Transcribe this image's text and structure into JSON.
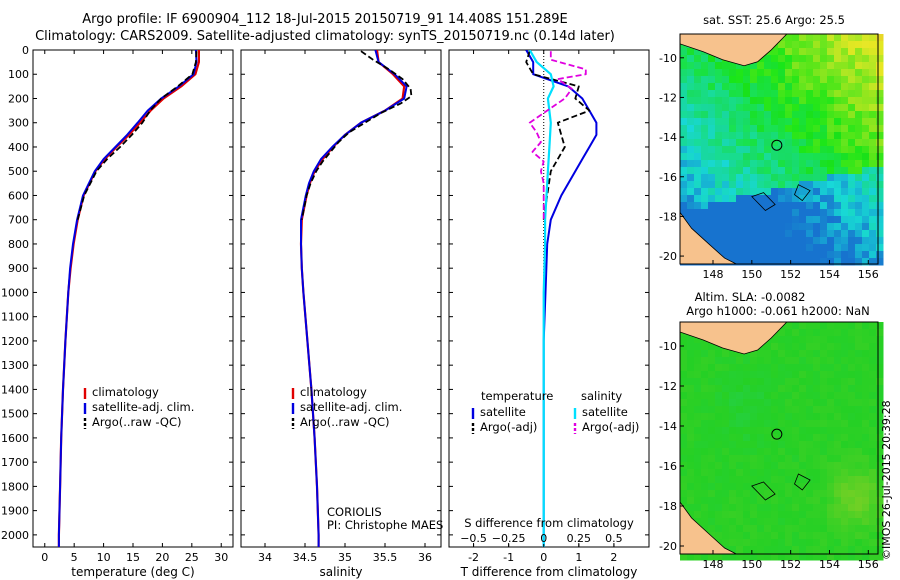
{
  "titles": {
    "line1": "Argo profile: IF 6900904_112 18-Jul-2015 20150719_91 14.408S 151.289E",
    "line2": "Climatology: CARS2009. Satellite-adjusted climatology: synTS_20150719.nc (0.14d later)"
  },
  "colors": {
    "clim": "#e00000",
    "sat": "#0000e0",
    "argo": "#000000",
    "cyan": "#00e0ff",
    "magenta": "#e000e0",
    "land": "#f7c28d"
  },
  "chart_data": [
    {
      "type": "line",
      "panel": "temperature",
      "xlabel": "temperature (deg C)",
      "xlim": [
        -2,
        32
      ],
      "ylim": [
        2050,
        0
      ],
      "xticks": [
        0,
        5,
        10,
        15,
        20,
        25,
        30
      ],
      "yticks": [
        0,
        100,
        200,
        300,
        400,
        500,
        600,
        700,
        800,
        900,
        1000,
        1100,
        1200,
        1300,
        1400,
        1500,
        1600,
        1700,
        1800,
        1900,
        2000
      ],
      "legend": [
        "climatology",
        "satellite-adj. clim.",
        "Argo(..raw -QC)"
      ],
      "series": [
        {
          "name": "climatology",
          "depth": [
            0,
            50,
            100,
            150,
            200,
            250,
            300,
            350,
            400,
            450,
            500,
            600,
            700,
            800,
            900,
            1000,
            1200,
            1400,
            1600,
            1800,
            2000,
            2050
          ],
          "values": [
            26.2,
            26.2,
            25.6,
            23.2,
            20.2,
            18.0,
            16.2,
            14.3,
            12.2,
            10.2,
            8.6,
            6.6,
            5.6,
            4.9,
            4.4,
            4.0,
            3.5,
            3.1,
            2.8,
            2.6,
            2.4,
            2.4
          ]
        },
        {
          "name": "satellite-adj. clim.",
          "depth": [
            0,
            50,
            100,
            150,
            200,
            250,
            300,
            350,
            400,
            450,
            500,
            600,
            700,
            800,
            900,
            1000,
            1200,
            1400,
            1600,
            1800,
            2000,
            2050
          ],
          "values": [
            25.7,
            25.8,
            25.3,
            22.8,
            19.8,
            17.5,
            15.8,
            14.0,
            12.0,
            10.0,
            8.5,
            6.5,
            5.5,
            4.8,
            4.3,
            4.0,
            3.5,
            3.1,
            2.8,
            2.6,
            2.4,
            2.4
          ]
        },
        {
          "name": "Argo(..raw -QC)",
          "depth": [
            5,
            50,
            100,
            150,
            200,
            250,
            300,
            350,
            400,
            450,
            500,
            600,
            700
          ],
          "values": [
            25.8,
            25.7,
            25.1,
            22.6,
            19.8,
            17.9,
            16.6,
            14.8,
            12.8,
            10.6,
            8.8,
            6.7,
            5.6
          ]
        }
      ]
    },
    {
      "type": "line",
      "panel": "salinity",
      "xlabel": "salinity",
      "xlim": [
        33.7,
        36.2
      ],
      "ylim": [
        2050,
        0
      ],
      "xticks": [
        34,
        34.5,
        35,
        35.5,
        36
      ],
      "legend": [
        "climatology",
        "satellite-adj. clim.",
        "Argo(..raw -QC)"
      ],
      "annotation": [
        "CORIOLIS",
        "PI: Christophe MAES"
      ],
      "series": [
        {
          "name": "climatology",
          "depth": [
            0,
            50,
            100,
            150,
            200,
            250,
            300,
            350,
            400,
            450,
            500,
            550,
            600,
            700,
            800,
            900,
            1000,
            1200,
            1400,
            1600,
            1800,
            2000,
            2050
          ],
          "values": [
            35.4,
            35.42,
            35.6,
            35.74,
            35.72,
            35.5,
            35.2,
            35.0,
            34.85,
            34.72,
            34.62,
            34.56,
            34.52,
            34.46,
            34.45,
            34.46,
            34.48,
            34.53,
            34.58,
            34.62,
            34.65,
            34.67,
            34.67
          ]
        },
        {
          "name": "satellite-adj. clim.",
          "depth": [
            0,
            50,
            100,
            150,
            200,
            250,
            300,
            350,
            400,
            450,
            500,
            550,
            600,
            700,
            800,
            900,
            1000,
            1200,
            1400,
            1600,
            1800,
            2000,
            2050
          ],
          "values": [
            35.38,
            35.42,
            35.62,
            35.77,
            35.74,
            35.5,
            35.2,
            35.0,
            34.84,
            34.7,
            34.61,
            34.55,
            34.51,
            34.45,
            34.45,
            34.46,
            34.48,
            34.53,
            34.58,
            34.62,
            34.65,
            34.67,
            34.67
          ]
        },
        {
          "name": "Argo(..raw -QC)",
          "depth": [
            5,
            40,
            80,
            120,
            160,
            190,
            220,
            260,
            300,
            340,
            380,
            420,
            460,
            500,
            550,
            600,
            700
          ],
          "values": [
            35.2,
            35.35,
            35.55,
            35.72,
            35.82,
            35.83,
            35.7,
            35.45,
            35.25,
            35.05,
            34.92,
            34.82,
            34.72,
            34.64,
            34.57,
            34.52,
            34.46
          ]
        }
      ]
    },
    {
      "type": "line",
      "panel": "difference",
      "xlabel": "T difference from climatology",
      "xlabel2": "S difference from climatology",
      "xlim": [
        -2.7,
        3.0
      ],
      "ylim": [
        2050,
        0
      ],
      "xticks": [
        -2,
        -1,
        0,
        1,
        2
      ],
      "xticks_s": [
        -0.5,
        -0.25,
        0,
        0.25,
        0.5
      ],
      "xticks_s_labels": [
        "−0.5",
        "−0.25",
        "0",
        "0.25",
        "0.5"
      ],
      "legend_headers": [
        "temperature",
        "salinity"
      ],
      "legend": [
        "satellite",
        "Argo(-adj)",
        "satellite",
        "Argo(-adj)"
      ],
      "series": [
        {
          "name": "temperature satellite",
          "depth": [
            0,
            50,
            100,
            150,
            200,
            250,
            300,
            350,
            400,
            450,
            500,
            600,
            700,
            800,
            1000,
            1200,
            1600,
            2050
          ],
          "values": [
            -0.5,
            -0.3,
            -0.3,
            0.7,
            1.1,
            1.3,
            1.5,
            1.5,
            1.3,
            1.1,
            0.9,
            0.5,
            0.2,
            0.1,
            0.05,
            0.0,
            0.0,
            0.0
          ]
        },
        {
          "name": "temperature Argo(-adj)",
          "depth": [
            5,
            50,
            100,
            150,
            200,
            250,
            300,
            350,
            400,
            450,
            500,
            600,
            700
          ],
          "values": [
            -0.4,
            -0.5,
            -0.3,
            1.0,
            0.9,
            1.3,
            0.4,
            0.5,
            0.6,
            0.4,
            0.2,
            0.1,
            0.0
          ]
        },
        {
          "name": "salinity satellite",
          "depth": [
            0,
            50,
            100,
            150,
            200,
            300,
            400,
            500,
            600,
            700,
            800,
            1000,
            1200,
            1600,
            2050
          ],
          "values": [
            -0.1,
            -0.05,
            0.05,
            0.07,
            0.03,
            0.05,
            0.04,
            0.03,
            0.02,
            0.01,
            0.01,
            0.0,
            0.0,
            0.0,
            0.0
          ]
        },
        {
          "name": "salinity Argo(-adj)",
          "depth": [
            5,
            40,
            80,
            100,
            120,
            160,
            200,
            260,
            300,
            340,
            380,
            420,
            460,
            500,
            550,
            600,
            700
          ],
          "values": [
            0.05,
            0.05,
            0.3,
            0.3,
            0.1,
            0.2,
            0.15,
            0.0,
            -0.1,
            -0.05,
            -0.02,
            -0.08,
            0.0,
            -0.02,
            0.0,
            0.0,
            0.0
          ]
        }
      ]
    }
  ],
  "maps": {
    "sst_title": "sat. SST: 25.6 Argo: 25.5",
    "sla_title1": "Altim. SLA: -0.0082",
    "sla_title2": "Argo h1000: -0.061 h2000: NaN",
    "lon_ticks": [
      148,
      150,
      152,
      154,
      156
    ],
    "lat_ticks": [
      -10,
      -12,
      -14,
      -16,
      -18,
      -20
    ],
    "lon_range": [
      146.3,
      156.5
    ],
    "lat_range": [
      -20.4,
      -8.8
    ],
    "argo_position": {
      "lon": 151.289,
      "lat": -14.408
    }
  },
  "stamp": "©IMOS 26-Jul-2015 20:39:28"
}
